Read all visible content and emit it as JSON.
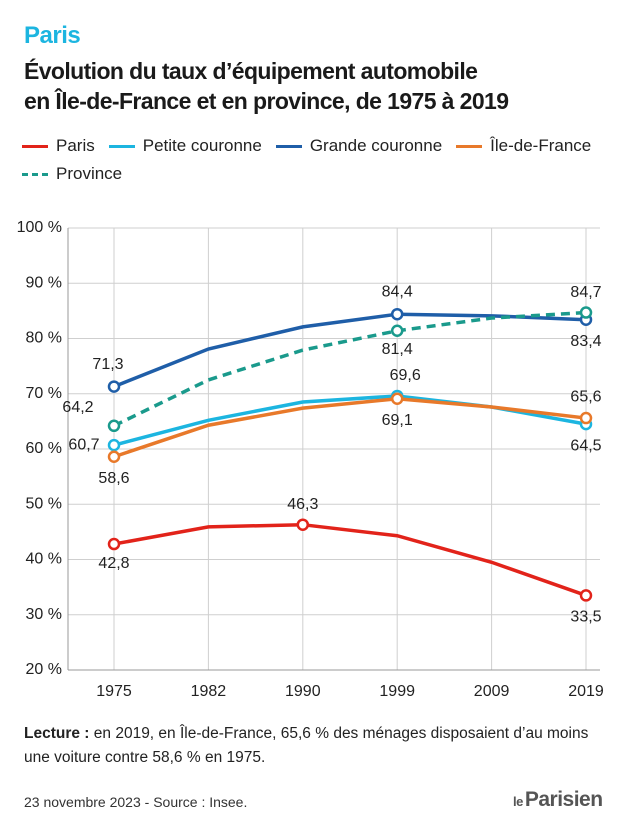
{
  "chart_data": {
    "type": "line",
    "kicker": "Paris",
    "title": [
      "Évolution du taux d’équipement automobile",
      "en Île-de-France et en province, de 1975 à 2019"
    ],
    "categories": [
      "1975",
      "1982",
      "1990",
      "1999",
      "2009",
      "2019"
    ],
    "ylim": [
      20,
      100
    ],
    "yticks": [
      {
        "value": 20,
        "label": "20 %"
      },
      {
        "value": 30,
        "label": "30 %"
      },
      {
        "value": 40,
        "label": "40 %"
      },
      {
        "value": 50,
        "label": "50 %"
      },
      {
        "value": 60,
        "label": "60 %"
      },
      {
        "value": 70,
        "label": "70 %"
      },
      {
        "value": 80,
        "label": "80 %"
      },
      {
        "value": 90,
        "label": "90 %"
      },
      {
        "value": 100,
        "label": "100 %"
      }
    ],
    "grid": true,
    "series": [
      {
        "name": "Paris",
        "color": "#e2231a",
        "style": "solid",
        "values": [
          42.8,
          45.9,
          46.3,
          44.3,
          39.5,
          33.5
        ],
        "value_labels": [
          "42,8",
          null,
          "46,3",
          null,
          null,
          "33,5"
        ]
      },
      {
        "name": "Petite couronne",
        "color": "#1cb5e0",
        "style": "solid",
        "values": [
          60.7,
          65.2,
          68.5,
          69.6,
          67.6,
          64.5
        ],
        "value_labels": [
          "60,7",
          null,
          null,
          "69,6",
          null,
          "64,5"
        ]
      },
      {
        "name": "Grande couronne",
        "color": "#1f5ea8",
        "style": "solid",
        "values": [
          71.3,
          78.1,
          82.1,
          84.4,
          84.1,
          83.4
        ],
        "value_labels": [
          "71,3",
          null,
          null,
          "84,4",
          null,
          "83,4"
        ]
      },
      {
        "name": "Île-de-France",
        "color": "#e8792a",
        "style": "solid",
        "values": [
          58.6,
          64.3,
          67.4,
          69.1,
          67.6,
          65.6
        ],
        "value_labels": [
          "58,6",
          null,
          null,
          "69,1",
          null,
          "65,6"
        ]
      },
      {
        "name": "Province",
        "color": "#1a9a8c",
        "style": "dashed",
        "values": [
          64.2,
          72.5,
          77.9,
          81.4,
          83.7,
          84.7
        ],
        "value_labels": [
          "64,2",
          null,
          null,
          "81,4",
          null,
          "84,7"
        ]
      }
    ],
    "note_label": "Lecture :",
    "note": "en 2019, en Île-de-France, 65,6 % des ménages disposaient d’au moins une voiture contre 58,6 % en 1975.",
    "source": "23 novembre 2023 - Source : Insee.",
    "logo": [
      "le",
      "Parisien"
    ]
  }
}
